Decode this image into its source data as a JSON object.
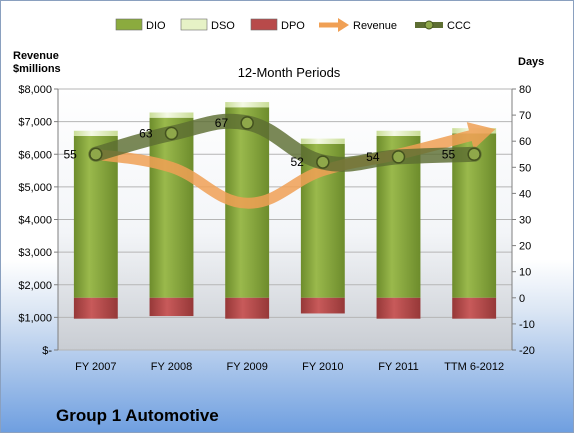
{
  "company_label": "Group 1 Automotive",
  "legend": [
    {
      "label": "DIO",
      "kind": "box",
      "color": "#8bab3e"
    },
    {
      "label": "DSO",
      "kind": "box",
      "color": "#e6f2c6"
    },
    {
      "label": "DPO",
      "kind": "box",
      "color": "#b84a4a"
    },
    {
      "label": "Revenue",
      "kind": "arrow",
      "color": "#f0a055"
    },
    {
      "label": "CCC",
      "kind": "line",
      "color": "#5d6e32"
    }
  ],
  "chart_data": {
    "type": "bar",
    "title": "12-Month Periods",
    "left_axis_label": [
      "Revenue",
      "$millions"
    ],
    "right_axis_label": "Days",
    "categories": [
      "FY 2007",
      "FY 2008",
      "FY 2009",
      "FY 2010",
      "FY 2011",
      "TTM 6-2012"
    ],
    "left_axis": {
      "min": 0,
      "max": 8000,
      "step": 1000,
      "tick_labels": [
        "$-",
        "$1,000",
        "$2,000",
        "$3,000",
        "$4,000",
        "$5,000",
        "$6,000",
        "$7,000",
        "$8,000"
      ]
    },
    "right_axis": {
      "min": -20,
      "max": 80,
      "step": 10
    },
    "series": [
      {
        "name": "DIO",
        "axis": "right",
        "chart": "stacked-bar",
        "color": "#8bab3e",
        "values": [
          62,
          69,
          73,
          59,
          62,
          63
        ]
      },
      {
        "name": "DSO",
        "axis": "right",
        "chart": "stacked-bar",
        "color": "#e6f2c6",
        "values": [
          2,
          2,
          2,
          2,
          2,
          2
        ]
      },
      {
        "name": "DPO",
        "axis": "right",
        "chart": "stacked-bar-negative",
        "color": "#b84a4a",
        "values": [
          -8,
          -7,
          -8,
          -6,
          -8,
          -8
        ]
      },
      {
        "name": "Revenue",
        "axis": "left",
        "chart": "line",
        "color": "#f0a055",
        "values": [
          6000,
          5600,
          4500,
          5500,
          6000,
          6600
        ]
      },
      {
        "name": "CCC",
        "axis": "right",
        "chart": "line",
        "color": "#5d6e32",
        "values": [
          55,
          63,
          67,
          52,
          54,
          55
        ],
        "data_labels": [
          "55",
          "63",
          "67",
          "52",
          "54",
          "55"
        ]
      }
    ],
    "grid": "horizontal"
  }
}
